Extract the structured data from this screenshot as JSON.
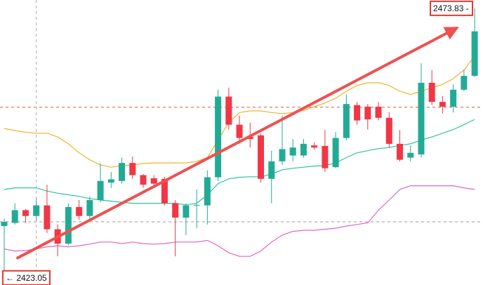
{
  "chart_data": {
    "type": "candlestick",
    "ylim": [
      2421.7,
      2475.4
    ],
    "up_color": "#22ab94",
    "down_color": "#f23645",
    "open": [
      2432.8,
      2433.4,
      2435.8,
      2434.7,
      2436.7,
      2432.2,
      2429.5,
      2436.4,
      2434.7,
      2437.7,
      2441.0,
      2441.3,
      2444.7,
      2442.4,
      2441.8,
      2441.7,
      2437.1,
      2434.4,
      2436.7,
      2436.7,
      2442.0,
      2457.2,
      2451.9,
      2449.6,
      2449.9,
      2441.7,
      2445.0,
      2446.1,
      2446.1,
      2448.0,
      2447.9,
      2443.9,
      2449.4,
      2455.6,
      2455.3,
      2455.3,
      2453.2,
      2448.3,
      2445.7,
      2446.3,
      2459.8,
      2456.2,
      2455.3,
      2458.5,
      2461.1
    ],
    "high": [
      2434.2,
      2437.1,
      2436.0,
      2438.0,
      2440.6,
      2433.1,
      2437.1,
      2437.7,
      2438.4,
      2444.6,
      2443.0,
      2445.7,
      2445.9,
      2442.6,
      2442.4,
      2442.1,
      2437.7,
      2437.1,
      2439.7,
      2443.3,
      2458.5,
      2458.9,
      2453.6,
      2452.3,
      2450.3,
      2447.0,
      2453.6,
      2449.2,
      2449.2,
      2448.6,
      2450.9,
      2450.5,
      2457.6,
      2456.2,
      2455.8,
      2456.2,
      2454.3,
      2450.9,
      2448.0,
      2463.5,
      2462.2,
      2457.3,
      2459.5,
      2462.2,
      2473.83
    ],
    "low": [
      2424.5,
      2433.1,
      2433.4,
      2433.8,
      2431.5,
      2427.1,
      2429.1,
      2434.0,
      2434.2,
      2437.3,
      2440.0,
      2440.8,
      2441.7,
      2440.0,
      2440.0,
      2436.7,
      2427.1,
      2431.1,
      2432.4,
      2433.1,
      2441.3,
      2451.0,
      2448.3,
      2447.6,
      2441.0,
      2437.1,
      2444.3,
      2445.0,
      2445.7,
      2447.2,
      2443.0,
      2443.7,
      2449.0,
      2451.9,
      2451.0,
      2452.7,
      2447.6,
      2445.0,
      2445.0,
      2445.7,
      2455.6,
      2454.0,
      2454.2,
      2458.2,
      2460.9
    ],
    "close": [
      2433.6,
      2435.8,
      2434.7,
      2436.7,
      2432.2,
      2429.5,
      2436.4,
      2434.7,
      2437.7,
      2441.3,
      2441.6,
      2444.7,
      2442.4,
      2440.6,
      2440.8,
      2437.1,
      2434.4,
      2436.7,
      2436.8,
      2442.0,
      2457.2,
      2451.9,
      2449.4,
      2449.2,
      2441.7,
      2445.0,
      2447.3,
      2447.6,
      2448.3,
      2447.6,
      2443.7,
      2449.4,
      2455.8,
      2452.7,
      2452.9,
      2453.2,
      2448.3,
      2445.3,
      2446.6,
      2459.8,
      2456.2,
      2455.3,
      2458.5,
      2461.1,
      2469.5
    ],
    "overlays": [
      {
        "color": "#f0b429",
        "values": [
          2451.2,
          2450.8,
          2450.5,
          2450.3,
          2450.3,
          2449.6,
          2448.3,
          2446.6,
          2445.3,
          2444.3,
          2443.9,
          2444.2,
          2444.3,
          2444.6,
          2444.7,
          2444.7,
          2444.7,
          2444.7,
          2445.0,
          2445.7,
          2449.0,
          2452.3,
          2454.2,
          2454.5,
          2454.5,
          2454.2,
          2454.0,
          2454.2,
          2454.6,
          2455.3,
          2456.0,
          2456.9,
          2458.2,
          2459.3,
          2459.8,
          2459.8,
          2459.3,
          2458.2,
          2457.6,
          2458.2,
          2458.9,
          2459.5,
          2460.6,
          2462.2,
          2464.8
        ]
      },
      {
        "color": "#2cc49c",
        "values": [
          2439.7,
          2440.0,
          2440.0,
          2440.0,
          2439.4,
          2439.0,
          2438.7,
          2438.4,
          2438.0,
          2437.7,
          2437.5,
          2437.3,
          2437.1,
          2437.1,
          2437.1,
          2437.1,
          2437.1,
          2436.8,
          2437.1,
          2438.7,
          2440.8,
          2441.7,
          2442.0,
          2442.1,
          2442.1,
          2442.6,
          2443.4,
          2443.7,
          2443.9,
          2444.1,
          2444.2,
          2444.7,
          2445.7,
          2446.6,
          2447.0,
          2447.4,
          2447.6,
          2448.0,
          2448.3,
          2449.0,
          2449.6,
          2450.3,
          2451.0,
          2451.9,
          2452.9
        ]
      },
      {
        "color": "#e066c8",
        "values": [
          2428.5,
          2428.1,
          2428.2,
          2428.5,
          2428.9,
          2429.1,
          2428.9,
          2429.1,
          2429.4,
          2429.8,
          2429.8,
          2429.5,
          2429.8,
          2429.5,
          2429.4,
          2429.5,
          2429.8,
          2429.8,
          2429.8,
          2430.1,
          2429.1,
          2427.8,
          2427.1,
          2427.1,
          2428.1,
          2429.8,
          2431.1,
          2431.8,
          2432.0,
          2432.0,
          2432.2,
          2432.4,
          2432.8,
          2433.1,
          2433.4,
          2435.8,
          2437.7,
          2439.7,
          2440.4,
          2440.4,
          2440.4,
          2440.4,
          2440.4,
          2440.0,
          2439.7
        ]
      }
    ],
    "hlines": [
      {
        "value": 2455.2,
        "color": "#d9534f"
      },
      {
        "value": 2433.6,
        "color": "#999999"
      }
    ],
    "vline_index": 3,
    "trend_arrow": {
      "x": [
        1.25,
        42.3
      ],
      "values": [
        2426.8,
        2470.1
      ],
      "color": "#f05050"
    },
    "high_label": {
      "value": 2473.83,
      "label": "2473.83 -"
    },
    "low_label": {
      "value": 2423.05,
      "label": "← 2423.05"
    }
  }
}
